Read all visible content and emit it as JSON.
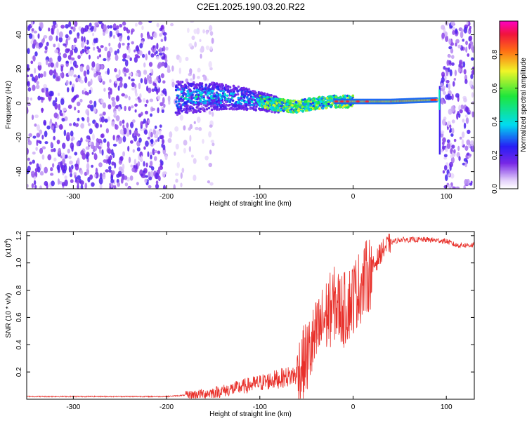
{
  "title": "C2E1.2025.190.03.20.R22",
  "chart_data": [
    {
      "type": "heatmap",
      "xlabel": "Height of straight line (km)",
      "ylabel": "Frequency (Hz)",
      "xlim": [
        -350,
        130
      ],
      "ylim": [
        -50,
        48
      ],
      "x_ticks": [
        -300,
        -200,
        -100,
        0,
        100
      ],
      "x_tick_labels": [
        "-300",
        "-200",
        "-100",
        "0",
        "100"
      ],
      "y_ticks": [
        -40,
        -20,
        0,
        20,
        40
      ],
      "y_tick_labels": [
        "-40",
        "-20",
        "0",
        "20",
        "40"
      ],
      "colorbar": {
        "label": "Normalized spectral amplitude",
        "range": [
          0,
          1
        ],
        "ticks": [
          0,
          0.2,
          0.4,
          0.6,
          0.8
        ],
        "tick_labels": [
          "0.0",
          "0.2",
          "0.4",
          "0.6",
          "0.8"
        ],
        "colormap": "rainbow"
      },
      "regions": [
        {
          "x_from": -350,
          "x_to": -200,
          "description_level": 0.2,
          "kind": "broadband noise"
        },
        {
          "x_from": -200,
          "x_to": -150,
          "description_level": 0.05,
          "kind": "faint noise"
        },
        {
          "x_from": -190,
          "x_to": -80,
          "description_level": 0.5,
          "kind": "signal onset"
        },
        {
          "x_from": -80,
          "x_to": 90,
          "description_level": 0.8,
          "kind": "carrier line near 0 Hz"
        },
        {
          "x_from": 95,
          "x_to": 130,
          "description_level": 0.2,
          "kind": "broadband noise"
        }
      ],
      "carrier_track": [
        {
          "x": -190,
          "y": 3
        },
        {
          "x": -150,
          "y": 4
        },
        {
          "x": -120,
          "y": 3
        },
        {
          "x": -100,
          "y": 1
        },
        {
          "x": -80,
          "y": -1
        },
        {
          "x": -60,
          "y": -2
        },
        {
          "x": -40,
          "y": 0
        },
        {
          "x": -20,
          "y": 1
        },
        {
          "x": 0,
          "y": 1
        },
        {
          "x": 40,
          "y": 1
        },
        {
          "x": 90,
          "y": 2
        }
      ]
    },
    {
      "type": "line",
      "xlabel": "Height of straight line (km)",
      "ylabel": "SNR (10 * v/v)",
      "y_multiplier_label": "(x10",
      "y_multiplier_exp": "4",
      "y_multiplier_close": ")",
      "xlim": [
        -350,
        130
      ],
      "ylim": [
        0,
        1.23
      ],
      "x_ticks": [
        -300,
        -200,
        -100,
        0,
        100
      ],
      "x_tick_labels": [
        "-300",
        "-200",
        "-100",
        "0",
        "100"
      ],
      "y_ticks": [
        0.2,
        0.4,
        0.6,
        0.8,
        1.0,
        1.2
      ],
      "y_tick_labels": [
        "0.2",
        "0.4",
        "0.6",
        "0.8",
        "1.0",
        "1.2"
      ],
      "series": [
        {
          "color": "#e8302a",
          "x": [
            -350,
            -300,
            -250,
            -200,
            -180,
            -160,
            -140,
            -120,
            -100,
            -80,
            -60,
            -50,
            -40,
            -30,
            -20,
            -10,
            0,
            10,
            20,
            30,
            40,
            50,
            60,
            80,
            100,
            110,
            120,
            130
          ],
          "y": [
            0.02,
            0.02,
            0.02,
            0.02,
            0.03,
            0.04,
            0.06,
            0.09,
            0.12,
            0.15,
            0.18,
            0.3,
            0.45,
            0.6,
            0.7,
            0.65,
            0.75,
            0.85,
            0.95,
            1.08,
            1.15,
            1.17,
            1.17,
            1.17,
            1.16,
            1.13,
            1.13,
            1.13
          ]
        }
      ]
    }
  ]
}
